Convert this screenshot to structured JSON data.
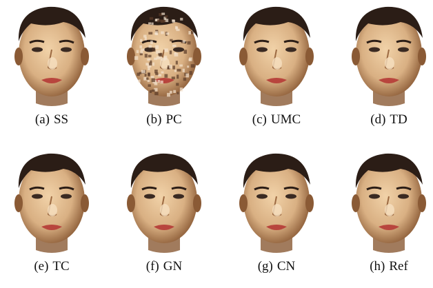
{
  "panels": [
    {
      "label": "(a)",
      "name": "SS",
      "variant": "smooth"
    },
    {
      "label": "(b)",
      "name": "PC",
      "variant": "noisy"
    },
    {
      "label": "(c)",
      "name": "UMC",
      "variant": "smooth"
    },
    {
      "label": "(d)",
      "name": "TD",
      "variant": "smooth"
    },
    {
      "label": "(e)",
      "name": "TC",
      "variant": "smooth"
    },
    {
      "label": "(f)",
      "name": "GN",
      "variant": "smooth"
    },
    {
      "label": "(g)",
      "name": "CN",
      "variant": "smooth"
    },
    {
      "label": "(h)",
      "name": "Ref",
      "variant": "smooth"
    }
  ],
  "colors": {
    "skin": "#d9b083",
    "skin_shadow": "#8a5a35",
    "hair": "#2b1d16",
    "lips": "#b8453d",
    "caption_text": "#111111"
  }
}
